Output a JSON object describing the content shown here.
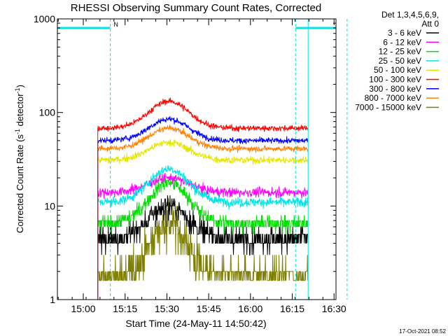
{
  "chart_data": {
    "type": "line",
    "title": "RHESSI Observing Summary Count Rates, Corrected",
    "xlabel": "Start Time (24-May-11 14:50:42)",
    "ylabel_main": "Corrected Count Rate (s",
    "ylabel_sup1": "-1",
    "ylabel_mid": " detector",
    "ylabel_sup2": "-1",
    "ylabel_end": ")",
    "yscale": "log",
    "ylim": [
      1,
      1000
    ],
    "y_ticks": [
      {
        "value": 1,
        "label": "1"
      },
      {
        "value": 10,
        "label": "10"
      },
      {
        "value": 100,
        "label": "100"
      },
      {
        "value": 1000,
        "label": "1000"
      }
    ],
    "xlim_minutes": [
      0,
      100
    ],
    "x_ticks": [
      {
        "value": 9.3,
        "label": "15:00"
      },
      {
        "value": 24.3,
        "label": "15:15"
      },
      {
        "value": 39.3,
        "label": "15:30"
      },
      {
        "value": 54.3,
        "label": "15:45"
      },
      {
        "value": 69.3,
        "label": "16:00"
      },
      {
        "value": 84.3,
        "label": "16:15"
      },
      {
        "value": 99.3,
        "label": "16:30"
      }
    ],
    "legend_header": [
      "Det 1,3,4,5,6,9,",
      "Att 0"
    ],
    "legend_position": "right",
    "timestamp": "17-Oct-2021 08:52",
    "annotations": {
      "night_marker": "N",
      "saa_left_range": [
        0,
        19
      ],
      "saa_right_range": [
        85.5,
        104
      ],
      "saa_level": 800,
      "data_start": 14.5,
      "data_end": 90.0,
      "peak_time": 40,
      "event_lines": [
        0,
        19,
        85.5,
        90,
        104
      ],
      "event_line_color": "#00e5e5"
    },
    "series": [
      {
        "name": "3 - 6 keV",
        "color": "#000000",
        "base": 4.5,
        "peak": 10,
        "noise": 0.05,
        "step": true
      },
      {
        "name": "6 - 12 keV",
        "color": "#ff00ff",
        "base": 14,
        "peak": 20,
        "noise": 0.02,
        "step": false
      },
      {
        "name": "12 - 25 keV",
        "color": "#00e000",
        "base": 6.5,
        "peak": 18,
        "noise": 0.03,
        "step": true
      },
      {
        "name": "25 - 50 keV",
        "color": "#00e5e5",
        "base": 11,
        "peak": 25,
        "noise": 0.02,
        "step": false
      },
      {
        "name": "50 - 100 keV",
        "color": "#e5e500",
        "base": 31,
        "peak": 48,
        "noise": 0.015,
        "step": false
      },
      {
        "name": "100 - 300 keV",
        "color": "#ff0000",
        "base": 68,
        "peak": 132,
        "noise": 0.012,
        "step": false
      },
      {
        "name": "300 - 800 keV",
        "color": "#0000ff",
        "base": 50,
        "peak": 85,
        "noise": 0.012,
        "step": false
      },
      {
        "name": "800 - 7000 keV",
        "color": "#ff8000",
        "base": 41,
        "peak": 68,
        "noise": 0.012,
        "step": false
      },
      {
        "name": "7000 - 15000 keV",
        "color": "#808000",
        "base": 1.6,
        "peak": 6.5,
        "noise": 0.09,
        "step": true
      }
    ]
  }
}
